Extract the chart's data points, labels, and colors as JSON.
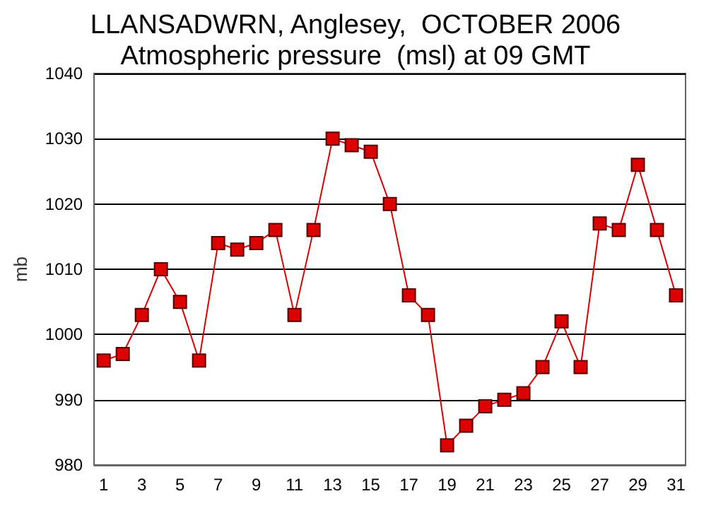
{
  "chart_data": {
    "type": "line",
    "title": "LLANSADWRN, Anglesey,  OCTOBER 2006\nAtmospheric pressure  (msl) at 09 GMT",
    "ylabel": "mb",
    "x": [
      1,
      2,
      3,
      4,
      5,
      6,
      7,
      8,
      9,
      10,
      11,
      12,
      13,
      14,
      15,
      16,
      17,
      18,
      19,
      20,
      21,
      22,
      23,
      24,
      25,
      26,
      27,
      28,
      29,
      30,
      31
    ],
    "xlim": [
      0.5,
      31.5
    ],
    "xticks": [
      1,
      3,
      5,
      7,
      9,
      11,
      13,
      15,
      17,
      19,
      21,
      23,
      25,
      27,
      29,
      31
    ],
    "series": [
      {
        "color": "#dd0000",
        "values": [
          996,
          997,
          1003,
          1010,
          1005,
          996,
          1014,
          1013,
          1014,
          1016,
          1003,
          1016,
          1030,
          1029,
          1028,
          1020,
          1006,
          1003,
          983,
          986,
          989,
          990,
          991,
          995,
          1002,
          995,
          1017,
          1016,
          1026,
          1016,
          1006
        ]
      }
    ],
    "ylim": [
      980,
      1040
    ],
    "yticks": [
      980,
      990,
      1000,
      1010,
      1020,
      1030,
      1040
    ],
    "grid": "y",
    "marker": "square",
    "line_style": "solid"
  }
}
